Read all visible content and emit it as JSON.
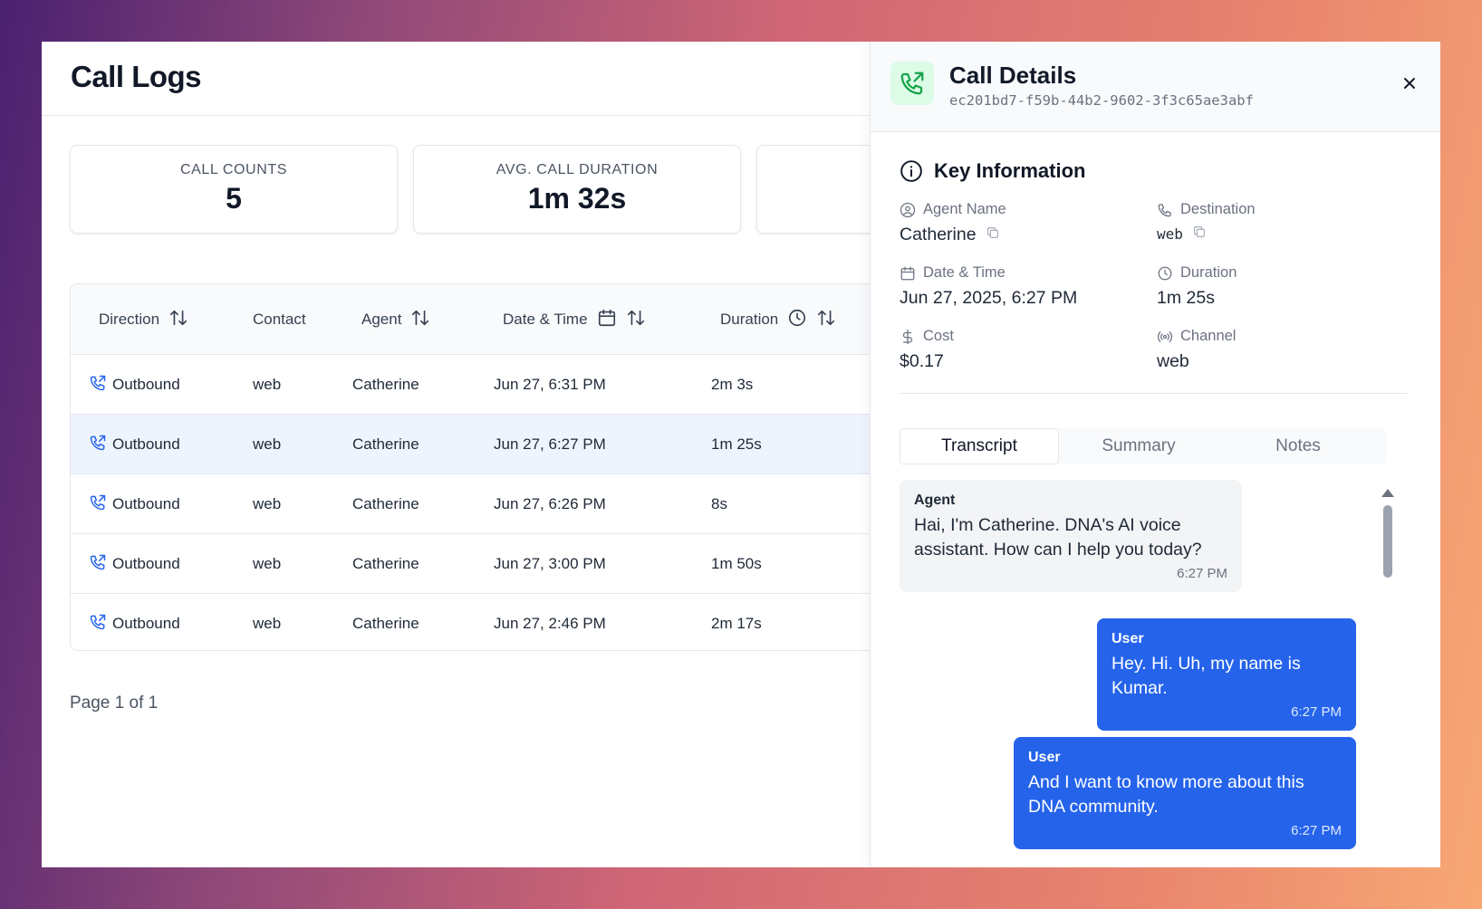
{
  "main": {
    "title": "Call Logs",
    "stats": [
      {
        "label": "CALL COUNTS",
        "value": "5"
      },
      {
        "label": "AVG. CALL DURATION",
        "value": "1m 32s"
      },
      {
        "label": "",
        "value": ""
      }
    ],
    "table": {
      "headers": {
        "direction": "Direction",
        "contact": "Contact",
        "agent": "Agent",
        "datetime": "Date & Time",
        "duration": "Duration"
      },
      "rows": [
        {
          "direction": "Outbound",
          "contact": "web",
          "agent": "Catherine",
          "datetime": "Jun 27, 6:31 PM",
          "duration": "2m 3s"
        },
        {
          "direction": "Outbound",
          "contact": "web",
          "agent": "Catherine",
          "datetime": "Jun 27, 6:27 PM",
          "duration": "1m 25s"
        },
        {
          "direction": "Outbound",
          "contact": "web",
          "agent": "Catherine",
          "datetime": "Jun 27, 6:26 PM",
          "duration": "8s"
        },
        {
          "direction": "Outbound",
          "contact": "web",
          "agent": "Catherine",
          "datetime": "Jun 27, 3:00 PM",
          "duration": "1m 50s"
        },
        {
          "direction": "Outbound",
          "contact": "web",
          "agent": "Catherine",
          "datetime": "Jun 27, 2:46 PM",
          "duration": "2m 17s"
        }
      ]
    },
    "pagination": "Page 1 of 1"
  },
  "drawer": {
    "title": "Call Details",
    "call_id": "ec201bd7-f59b-44b2-9602-3f3c65ae3abf",
    "section_title": "Key Information",
    "info": {
      "agent_name": {
        "label": "Agent Name",
        "value": "Catherine"
      },
      "destination": {
        "label": "Destination",
        "value": "web"
      },
      "date_time": {
        "label": "Date & Time",
        "value": "Jun 27, 2025, 6:27 PM"
      },
      "duration": {
        "label": "Duration",
        "value": "1m 25s"
      },
      "cost": {
        "label": "Cost",
        "value": "$0.17"
      },
      "channel": {
        "label": "Channel",
        "value": "web"
      }
    },
    "tabs": [
      "Transcript",
      "Summary",
      "Notes"
    ],
    "active_tab": "Transcript",
    "transcript": [
      {
        "role": "Agent",
        "text": "Hai, I'm Catherine. DNA's AI voice assistant. How can I help you today?",
        "time": "6:27 PM"
      },
      {
        "role": "User",
        "text": "Hey. Hi. Uh, my name is Kumar.",
        "time": "6:27 PM"
      },
      {
        "role": "User",
        "text": "And I want to know more about this DNA community.",
        "time": "6:27 PM"
      }
    ]
  },
  "colors": {
    "accent": "#2563eb",
    "call_badge_bg": "#dcfce7",
    "call_badge_icon": "#16a34a",
    "selected_row": "#eef4fd"
  }
}
